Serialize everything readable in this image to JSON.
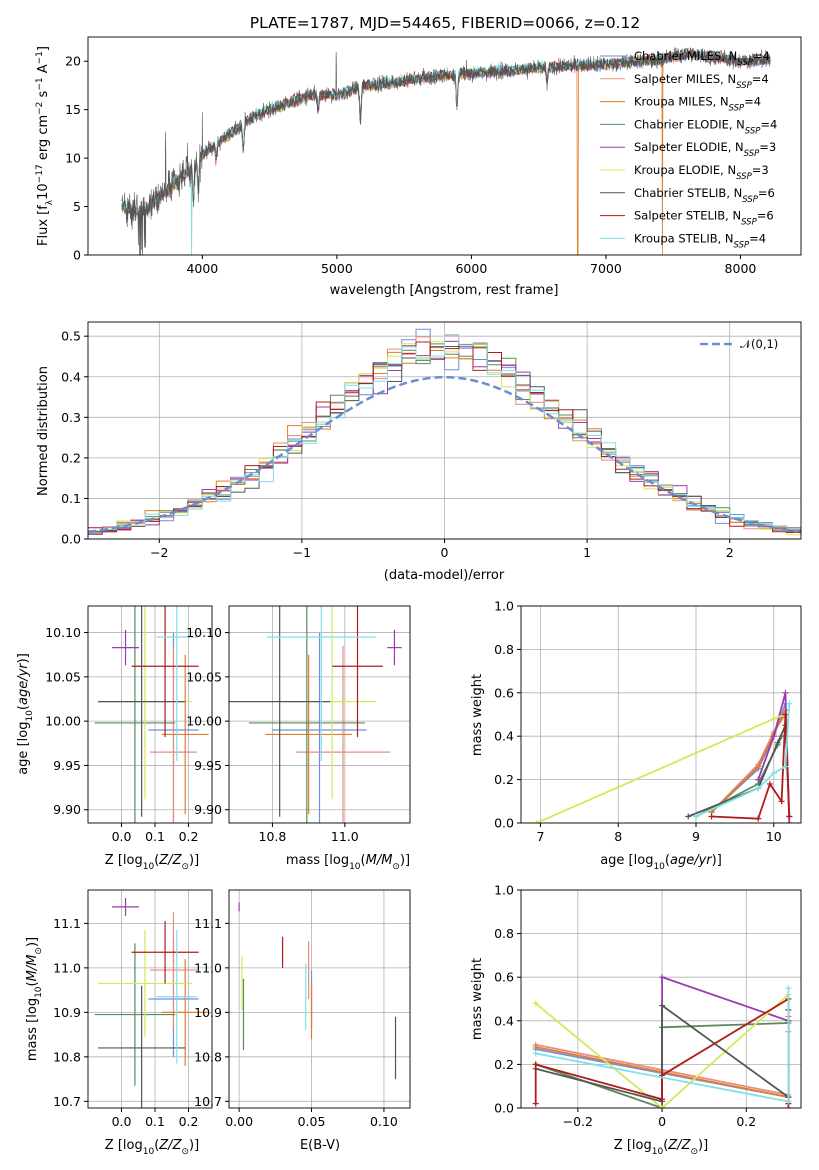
{
  "figure": {
    "title": "PLATE=1787, MJD=54465, FIBERID=0066, z=0.12"
  },
  "models": [
    {
      "name": "Chabrier MILES, N_SSP=4",
      "imf": "Chabrier",
      "lib": "MILES",
      "nssp": "4",
      "color": "#6f8fe0",
      "Z": 0.155,
      "Zerr": 0.075,
      "age": 9.99,
      "ageerr": 0.11,
      "mass": 10.93,
      "masserr": 0.13,
      "ebv": 0.05,
      "ebverr": 0.05
    },
    {
      "name": "Salpeter MILES, N_SSP=4",
      "imf": "Salpeter",
      "lib": "MILES",
      "nssp": "4",
      "color": "#e98b7d",
      "Z": 0.155,
      "Zerr": 0.07,
      "age": 9.965,
      "ageerr": 0.12,
      "mass": 10.995,
      "masserr": 0.13,
      "ebv": 0.048,
      "ebverr": 0.06
    },
    {
      "name": "Kroupa MILES, N_SSP=4",
      "imf": "Kroupa",
      "lib": "MILES",
      "nssp": "4",
      "color": "#e07d2a",
      "Z": 0.19,
      "Zerr": 0.07,
      "age": 9.985,
      "ageerr": 0.09,
      "mass": 10.9,
      "masserr": 0.12,
      "ebv": 0.05,
      "ebverr": 0.05
    },
    {
      "name": "Chabrier ELODIE, N_SSP=4",
      "imf": "Chabrier",
      "lib": "ELODIE",
      "nssp": "4",
      "color": "#5a8a5a",
      "Z": 0.04,
      "Zerr": 0.12,
      "age": 9.998,
      "ageerr": 0.14,
      "mass": 10.895,
      "masserr": 0.16,
      "ebv": 0.003,
      "ebverr": 0.05
    },
    {
      "name": "Salpeter ELODIE, N_SSP=3",
      "imf": "Salpeter",
      "lib": "ELODIE",
      "nssp": "3",
      "color": "#9b3ab0",
      "Z": 0.012,
      "Zerr": 0.04,
      "age": 10.083,
      "ageerr": 0.02,
      "mass": 11.137,
      "masserr": 0.02,
      "ebv": 0.0,
      "ebverr": 0.015
    },
    {
      "name": "Kroupa ELODIE, N_SSP=3",
      "imf": "Kroupa",
      "lib": "ELODIE",
      "nssp": "3",
      "color": "#d4e85a",
      "Z": 0.07,
      "Zerr": 0.14,
      "age": 10.022,
      "ageerr": 0.11,
      "mass": 10.965,
      "masserr": 0.12,
      "ebv": 0.002,
      "ebverr": 0.05
    },
    {
      "name": "Chabrier STELIB, N_SSP=6",
      "imf": "Chabrier",
      "lib": "STELIB",
      "nssp": "6",
      "color": "#555555",
      "Z": 0.06,
      "Zerr": 0.13,
      "age": 10.022,
      "ageerr": 0.13,
      "mass": 10.82,
      "masserr": 0.14,
      "ebv": 0.108,
      "ebverr": 0.07
    },
    {
      "name": "Salpeter STELIB, N_SSP=6",
      "imf": "Salpeter",
      "lib": "STELIB",
      "nssp": "6",
      "color": "#b01c1c",
      "Z": 0.13,
      "Zerr": 0.1,
      "age": 10.062,
      "ageerr": 0.08,
      "mass": 11.035,
      "masserr": 0.07,
      "ebv": 0.03,
      "ebverr": 0.045
    },
    {
      "name": "Kroupa STELIB, N_SSP=4",
      "imf": "Kroupa",
      "lib": "STELIB",
      "nssp": "4",
      "color": "#7fe0e8",
      "Z": 0.165,
      "Zerr": 0.06,
      "age": 10.095,
      "ageerr": 0.14,
      "mass": 10.935,
      "masserr": 0.15,
      "ebv": 0.046,
      "ebverr": 0.06
    }
  ],
  "chart_data": [
    {
      "type": "line",
      "id": "spectrum",
      "title": "PLATE=1787, MJD=54465, FIBERID=0066, z=0.12",
      "xlabel": "wavelength [Angstrom, rest frame]",
      "ylabel": "Flux [f_λ 10^-17 erg cm^-2 s^-1 A^-1]",
      "xlim": [
        3150,
        8450
      ],
      "ylim": [
        0,
        22.5
      ],
      "xticks": [
        4000,
        5000,
        6000,
        7000,
        8000
      ],
      "yticks": [
        0,
        5,
        10,
        15,
        20
      ],
      "grid": false,
      "legend": "top-right",
      "continuum": {
        "x": [
          3400,
          3550,
          3700,
          3850,
          4000,
          4100,
          4250,
          4400,
          4600,
          4800,
          5000,
          5200,
          5400,
          5600,
          5800,
          6000,
          6200,
          6400,
          6600,
          6800,
          7000,
          7200,
          7400,
          7600,
          7800,
          8000,
          8200
        ],
        "y": [
          5.0,
          4.3,
          6.2,
          8.0,
          10.3,
          11.5,
          13.0,
          14.5,
          15.5,
          16.5,
          16.5,
          17.5,
          17.8,
          18.2,
          18.6,
          18.8,
          19.0,
          19.2,
          19.4,
          19.6,
          19.7,
          20.0,
          20.2,
          20.8,
          20.5,
          20.0,
          20.2
        ]
      },
      "absorption_lines": [
        {
          "x": 3934,
          "depth": 3.5
        },
        {
          "x": 3969,
          "depth": 3.0
        },
        {
          "x": 4102,
          "depth": 1.5
        },
        {
          "x": 4304,
          "depth": 2.5
        },
        {
          "x": 4861,
          "depth": 1.5
        },
        {
          "x": 5175,
          "depth": 3.5
        },
        {
          "x": 5892,
          "depth": 3.5
        },
        {
          "x": 6563,
          "depth": 1.5
        }
      ],
      "emission_spikes": [
        {
          "x": 3727,
          "height": 6.0
        },
        {
          "x": 4000,
          "height": 4.5
        },
        {
          "x": 4995,
          "height": 4.5
        },
        {
          "x": 3890,
          "height": 3.0
        }
      ],
      "model_drops": [
        {
          "model": 2,
          "x": 6790,
          "to": 0
        },
        {
          "model": 2,
          "x": 7420,
          "to": 0
        },
        {
          "model": 5,
          "x": 3920,
          "to": 0
        },
        {
          "model": 8,
          "x": 3920,
          "to": 0
        }
      ]
    },
    {
      "type": "line",
      "id": "residuals",
      "xlabel": "(data-model)/error",
      "ylabel": "Normed distribution",
      "xlim": [
        -2.5,
        2.5
      ],
      "ylim": [
        0,
        0.535
      ],
      "xticks": [
        -2,
        -1,
        0,
        1,
        2
      ],
      "yticks": [
        0.0,
        0.1,
        0.2,
        0.3,
        0.4,
        0.5
      ],
      "grid": true,
      "legend": "top-right",
      "reference": {
        "name": "𝒩(0,1)",
        "color": "#6a8fd0"
      },
      "bin_width": 0.1
    },
    {
      "type": "scatter",
      "id": "age_vs_Z",
      "xlabel": "Z [log10(Z/Z_⊙)]",
      "ylabel": "age  [log10(age/yr)]",
      "xlim": [
        -0.1,
        0.27
      ],
      "ylim": [
        9.885,
        10.13
      ],
      "xticks": [
        0.0,
        0.1,
        0.2
      ],
      "yticks": [
        9.9,
        9.95,
        10.0,
        10.05,
        10.1
      ],
      "grid": true
    },
    {
      "type": "scatter",
      "id": "age_vs_mass",
      "xlabel": "mass [log10(M/M_⊙)]",
      "ylabel": "",
      "xlim": [
        10.68,
        11.18
      ],
      "ylim": [
        9.885,
        10.13
      ],
      "xticks": [
        10.8,
        11.0
      ],
      "yticks": [
        9.9,
        9.95,
        10.0,
        10.05,
        10.1
      ],
      "grid": true
    },
    {
      "type": "line",
      "id": "mass_weight_vs_age",
      "xlabel": "age  [log10(age/yr)]",
      "ylabel": "mass weight",
      "xlim": [
        6.75,
        10.35
      ],
      "ylim": [
        0,
        1.0
      ],
      "xticks": [
        7,
        8,
        9,
        10
      ],
      "yticks": [
        0.0,
        0.2,
        0.4,
        0.6,
        0.8,
        1.0
      ],
      "grid": true,
      "series": [
        {
          "model": 0,
          "x": [
            9.2,
            9.8,
            10.0,
            10.15
          ],
          "y": [
            0.05,
            0.25,
            0.4,
            0.55
          ]
        },
        {
          "model": 1,
          "x": [
            9.2,
            9.8,
            10.0,
            10.15
          ],
          "y": [
            0.05,
            0.27,
            0.42,
            0.5
          ]
        },
        {
          "model": 2,
          "x": [
            9.2,
            9.8,
            10.0,
            10.15
          ],
          "y": [
            0.05,
            0.26,
            0.41,
            0.52
          ]
        },
        {
          "model": 3,
          "x": [
            9.0,
            9.8,
            10.05,
            10.1,
            10.15
          ],
          "y": [
            0.03,
            0.18,
            0.36,
            0.4,
            0.4
          ]
        },
        {
          "model": 4,
          "x": [
            9.8,
            10.0,
            10.15,
            10.2
          ],
          "y": [
            0.2,
            0.4,
            0.6,
            0.0
          ]
        },
        {
          "model": 5,
          "x": [
            6.95,
            10.0,
            10.15
          ],
          "y": [
            0.0,
            0.48,
            0.5
          ]
        },
        {
          "model": 6,
          "x": [
            8.9,
            9.8,
            10.05,
            10.15,
            10.2
          ],
          "y": [
            0.03,
            0.16,
            0.37,
            0.45,
            0.03
          ]
        },
        {
          "model": 7,
          "x": [
            9.2,
            9.8,
            9.95,
            10.1,
            10.15,
            10.2
          ],
          "y": [
            0.03,
            0.02,
            0.18,
            0.1,
            0.5,
            0.03
          ]
        },
        {
          "model": 8,
          "x": [
            9.0,
            9.8,
            10.0,
            10.15,
            10.2
          ],
          "y": [
            0.03,
            0.16,
            0.23,
            0.26,
            0.55
          ]
        }
      ]
    },
    {
      "type": "scatter",
      "id": "mass_vs_Z",
      "xlabel": "Z [log10(Z/Z_⊙)]",
      "ylabel": "mass [log10(M/M_⊙)]",
      "xlim": [
        -0.1,
        0.27
      ],
      "ylim": [
        10.685,
        11.175
      ],
      "xticks": [
        0.0,
        0.1,
        0.2
      ],
      "yticks": [
        10.7,
        10.8,
        10.9,
        11.0,
        11.1
      ],
      "grid": true
    },
    {
      "type": "scatter",
      "id": "mass_vs_ebv",
      "xlabel": "E(B-V)",
      "ylabel": "",
      "xlim": [
        -0.007,
        0.118
      ],
      "ylim": [
        10.685,
        11.175
      ],
      "xticks": [
        0.0,
        0.05,
        0.1
      ],
      "yticks": [
        10.7,
        10.8,
        10.9,
        11.0,
        11.1
      ],
      "grid": true
    },
    {
      "type": "line",
      "id": "mass_weight_vs_Z",
      "xlabel": "Z [log10(Z/Z_⊙)]",
      "ylabel": "mass weight",
      "xlim": [
        -0.335,
        0.33
      ],
      "ylim": [
        0,
        1.0
      ],
      "xticks": [
        -0.2,
        0.0,
        0.2
      ],
      "yticks": [
        0.0,
        0.2,
        0.4,
        0.6,
        0.8,
        1.0
      ],
      "grid": true,
      "series": [
        {
          "model": 0,
          "x": [
            -0.3,
            0.3,
            0.3
          ],
          "y": [
            0.27,
            0.05,
            0.4
          ]
        },
        {
          "model": 1,
          "x": [
            -0.3,
            0.3,
            0.3
          ],
          "y": [
            0.29,
            0.06,
            0.35
          ]
        },
        {
          "model": 2,
          "x": [
            -0.3,
            0.3,
            0.3
          ],
          "y": [
            0.28,
            0.05,
            0.42
          ]
        },
        {
          "model": 3,
          "x": [
            -0.3,
            0.0,
            0.0,
            0.3,
            0.3
          ],
          "y": [
            0.2,
            0.0,
            0.37,
            0.39,
            0.03
          ]
        },
        {
          "model": 4,
          "x": [
            0.0,
            0.0,
            0.3,
            0.3
          ],
          "y": [
            0.0,
            0.6,
            0.4,
            0.0
          ]
        },
        {
          "model": 5,
          "x": [
            -0.3,
            0.0,
            0.3
          ],
          "y": [
            0.48,
            0.0,
            0.52
          ]
        },
        {
          "model": 6,
          "x": [
            -0.3,
            0.0,
            0.0,
            0.3,
            0.3
          ],
          "y": [
            0.18,
            0.03,
            0.47,
            0.05,
            0.45
          ]
        },
        {
          "model": 7,
          "x": [
            -0.3,
            -0.3,
            0.0,
            0.0,
            0.3,
            0.3
          ],
          "y": [
            0.02,
            0.2,
            0.04,
            0.15,
            0.5,
            0.02
          ]
        },
        {
          "model": 8,
          "x": [
            -0.3,
            0.3,
            0.3
          ],
          "y": [
            0.25,
            0.03,
            0.55
          ]
        }
      ]
    }
  ]
}
